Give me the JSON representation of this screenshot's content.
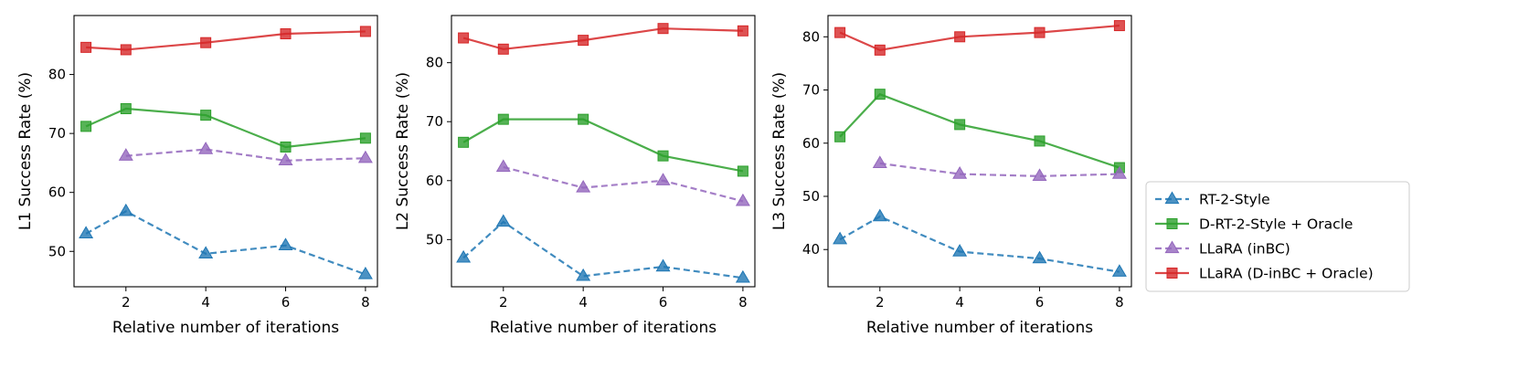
{
  "chart_data": [
    {
      "type": "line",
      "xlabel": "Relative number of iterations",
      "ylabel": "L1 Success Rate (%)",
      "xlim": [
        0.7,
        8.3
      ],
      "ylim": [
        44,
        90
      ],
      "xticks": [
        2,
        4,
        6,
        8
      ],
      "yticks": [
        50,
        60,
        70,
        80
      ],
      "grid": false,
      "series": [
        {
          "name": "RT-2-Style",
          "x": [
            1,
            2,
            4,
            6,
            8
          ],
          "values": [
            53.0,
            56.8,
            49.6,
            51.0,
            46.1
          ]
        },
        {
          "name": "D-RT-2-Style + Oracle",
          "x": [
            1,
            2,
            4,
            6,
            8
          ],
          "values": [
            71.2,
            74.2,
            73.1,
            67.7,
            69.2
          ]
        },
        {
          "name": "LLaRA (inBC)",
          "x": [
            2,
            4,
            6,
            8
          ],
          "values": [
            66.2,
            67.3,
            65.4,
            65.8
          ]
        },
        {
          "name": "LLaRA (D-inBC + Oracle)",
          "x": [
            1,
            2,
            4,
            6,
            8
          ],
          "values": [
            84.6,
            84.2,
            85.4,
            86.9,
            87.3
          ]
        }
      ]
    },
    {
      "type": "line",
      "xlabel": "Relative number of iterations",
      "ylabel": "L2 Success Rate (%)",
      "xlim": [
        0.7,
        8.3
      ],
      "ylim": [
        42,
        88
      ],
      "xticks": [
        2,
        4,
        6,
        8
      ],
      "yticks": [
        50,
        60,
        70,
        80
      ],
      "grid": false,
      "series": [
        {
          "name": "RT-2-Style",
          "x": [
            1,
            2,
            4,
            6,
            8
          ],
          "values": [
            46.9,
            53.0,
            43.8,
            45.4,
            43.5
          ]
        },
        {
          "name": "D-RT-2-Style + Oracle",
          "x": [
            1,
            2,
            4,
            6,
            8
          ],
          "values": [
            66.5,
            70.4,
            70.4,
            64.2,
            61.6
          ]
        },
        {
          "name": "LLaRA (inBC)",
          "x": [
            2,
            4,
            6,
            8
          ],
          "values": [
            62.3,
            58.8,
            60.0,
            56.5
          ]
        },
        {
          "name": "LLaRA (D-inBC + Oracle)",
          "x": [
            1,
            2,
            4,
            6,
            8
          ],
          "values": [
            84.2,
            82.3,
            83.8,
            85.8,
            85.4
          ]
        }
      ]
    },
    {
      "type": "line",
      "xlabel": "Relative number of iterations",
      "ylabel": "L3 Success Rate (%)",
      "xlim": [
        0.7,
        8.3
      ],
      "ylim": [
        33,
        84
      ],
      "xticks": [
        2,
        4,
        6,
        8
      ],
      "yticks": [
        40,
        50,
        60,
        70,
        80
      ],
      "grid": false,
      "series": [
        {
          "name": "RT-2-Style",
          "x": [
            1,
            2,
            4,
            6,
            8
          ],
          "values": [
            41.9,
            46.2,
            39.6,
            38.3,
            35.8
          ]
        },
        {
          "name": "D-RT-2-Style + Oracle",
          "x": [
            1,
            2,
            4,
            6,
            8
          ],
          "values": [
            61.2,
            69.2,
            63.5,
            60.4,
            55.4
          ]
        },
        {
          "name": "LLaRA (inBC)",
          "x": [
            2,
            4,
            6,
            8
          ],
          "values": [
            56.2,
            54.2,
            53.8,
            54.2
          ]
        },
        {
          "name": "LLaRA (D-inBC + Oracle)",
          "x": [
            1,
            2,
            4,
            6,
            8
          ],
          "values": [
            80.8,
            77.5,
            80.0,
            80.8,
            82.1
          ]
        }
      ]
    }
  ],
  "legend": {
    "position": "right",
    "entries": [
      {
        "label": "RT-2-Style",
        "color": "#1f77b4",
        "marker": "triangle",
        "linestyle": "dashed"
      },
      {
        "label": "D-RT-2-Style + Oracle",
        "color": "#2ca02c",
        "marker": "square",
        "linestyle": "solid"
      },
      {
        "label": "LLaRA (inBC)",
        "color": "#9467bd",
        "marker": "triangle",
        "linestyle": "dashed"
      },
      {
        "label": "LLaRA (D-inBC + Oracle)",
        "color": "#d62728",
        "marker": "square",
        "linestyle": "solid"
      }
    ]
  }
}
